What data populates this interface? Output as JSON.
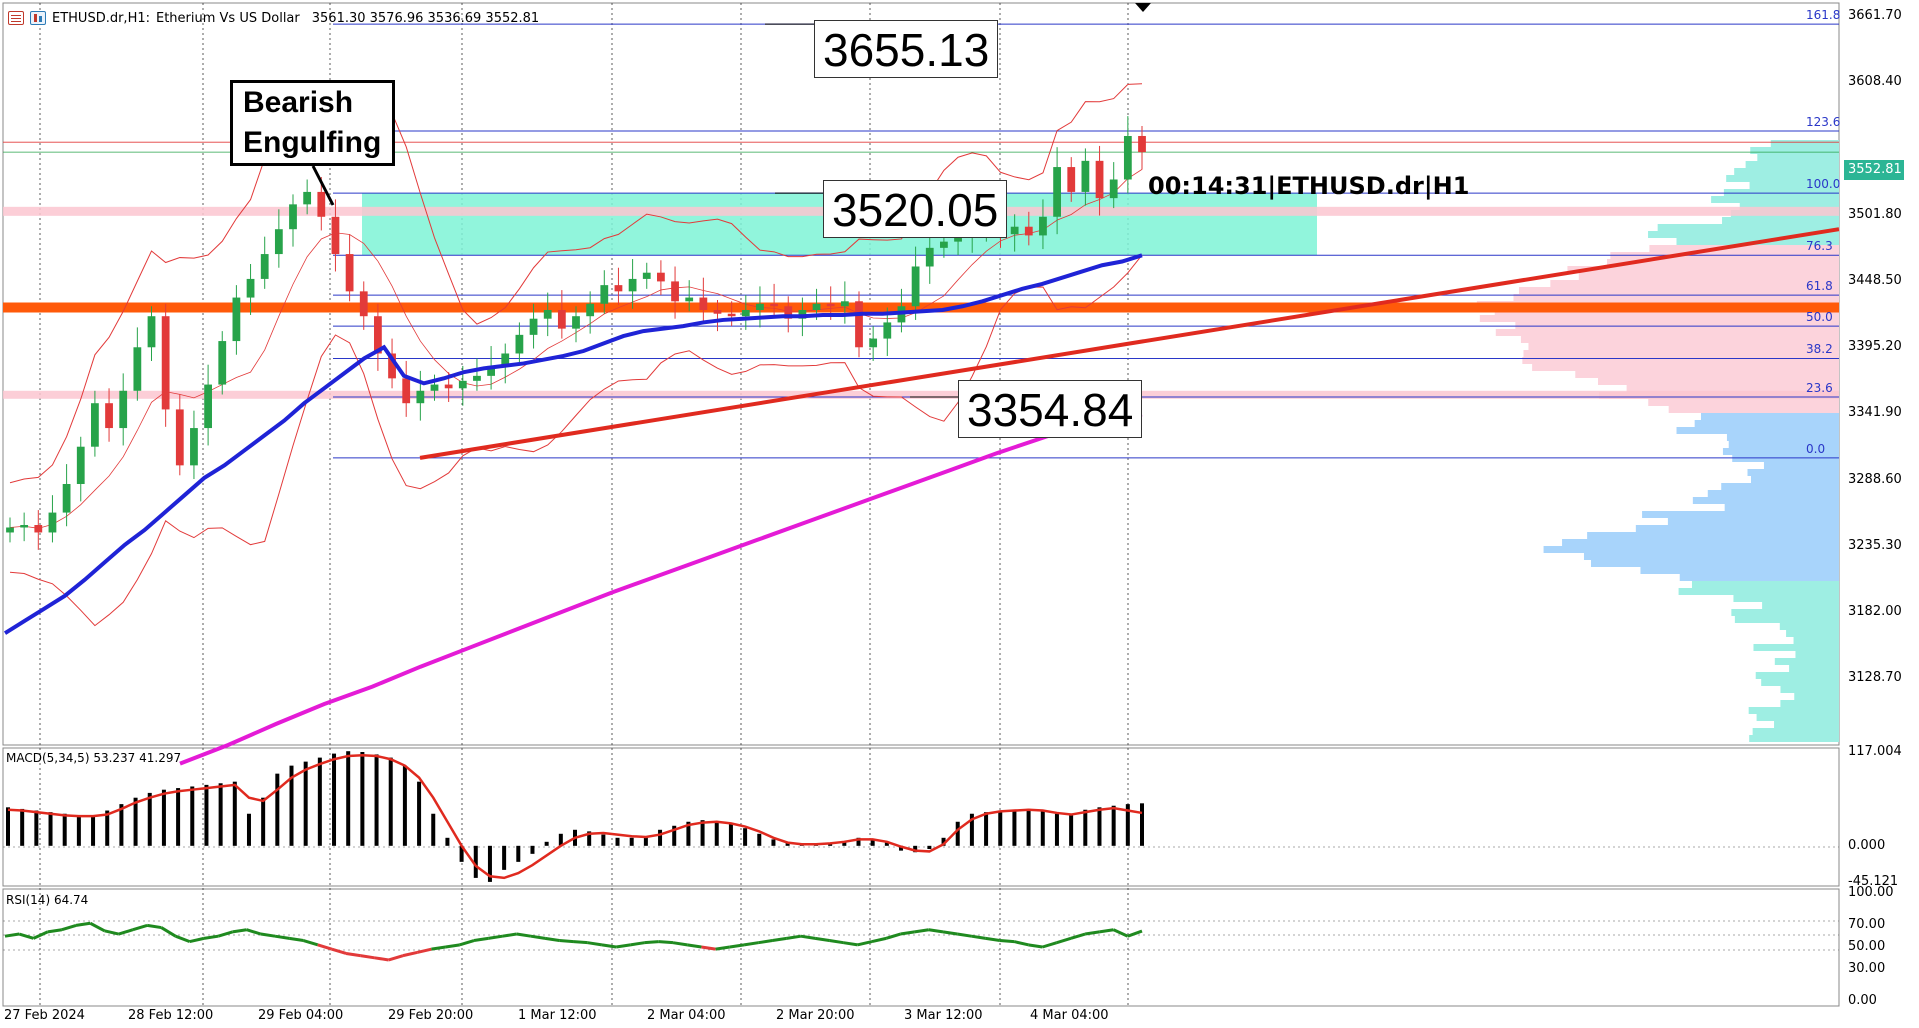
{
  "header": {
    "symbol": "ETHUSD.dr,H1:",
    "description": "Etherium Vs US Dollar",
    "ohlc": "3561.30 3576.96 3536.69 3552.81"
  },
  "annotations": {
    "pattern_line1": "Bearish",
    "pattern_line2": "Engulfing",
    "level_high": "3655.13",
    "level_mid": "3520.05",
    "level_low": "3354.84",
    "timer": "00:14:31|ETHUSD.dr|H1",
    "last_price": "3552.81"
  },
  "colors": {
    "ma_fast": "#1f23d6",
    "ma_slow": "#e41bd6",
    "trendline": "#e02a1f",
    "support_band": "#ff5a0a",
    "zone": "#7ef3d6",
    "bull": "#27a34a",
    "bear": "#e23a3a",
    "fib": "#2a37c8"
  },
  "chart_data": [
    {
      "type": "line",
      "title": "ETHUSD.dr,H1",
      "y_ticks": [
        "3661.70",
        "3608.40",
        "3501.80",
        "3448.50",
        "3395.20",
        "3341.90",
        "3288.60",
        "3235.30",
        "3182.00",
        "3128.70"
      ],
      "x_ticks": [
        "27 Feb 2024",
        "28 Feb 12:00",
        "29 Feb 04:00",
        "29 Feb 20:00",
        "1 Mar 12:00",
        "2 Mar 04:00",
        "2 Mar 20:00",
        "3 Mar 12:00",
        "4 Mar 04:00"
      ],
      "ylim": [
        3075,
        3672
      ],
      "fib_levels": [
        {
          "label": "161.8",
          "value": 3655
        },
        {
          "label": "123.6",
          "value": 3569
        },
        {
          "label": "100.0",
          "value": 3519
        },
        {
          "label": "76.3",
          "value": 3469
        },
        {
          "label": "61.8",
          "value": 3437
        },
        {
          "label": "50.0",
          "value": 3412
        },
        {
          "label": "38.2",
          "value": 3386
        },
        {
          "label": "23.6",
          "value": 3355
        },
        {
          "label": "0.0",
          "value": 3306
        }
      ],
      "series": [
        {
          "name": "close",
          "values": [
            3250,
            3252,
            3246,
            3262,
            3285,
            3315,
            3350,
            3330,
            3360,
            3395,
            3420,
            3345,
            3300,
            3330,
            3365,
            3400,
            3435,
            3450,
            3470,
            3490,
            3510,
            3520,
            3500,
            3470,
            3440,
            3420,
            3390,
            3370,
            3350,
            3360,
            3365,
            3362,
            3368,
            3372,
            3380,
            3390,
            3405,
            3418,
            3425,
            3410,
            3420,
            3430,
            3445,
            3440,
            3450,
            3455,
            3448,
            3432,
            3435,
            3425,
            3422,
            3420,
            3425,
            3430,
            3428,
            3418,
            3425,
            3430,
            3428,
            3432,
            3395,
            3402,
            3415,
            3428,
            3460,
            3475,
            3480,
            3485,
            3488,
            3490,
            3486,
            3492,
            3485,
            3500,
            3540,
            3520,
            3545,
            3515,
            3530,
            3565,
            3552
          ]
        },
        {
          "name": "MA fast",
          "values": [
            3165,
            3175,
            3185,
            3195,
            3208,
            3222,
            3236,
            3248,
            3262,
            3276,
            3290,
            3300,
            3312,
            3324,
            3336,
            3350,
            3362,
            3374,
            3386,
            3395,
            3372,
            3366,
            3370,
            3375,
            3378,
            3380,
            3382,
            3385,
            3388,
            3392,
            3398,
            3404,
            3408,
            3410,
            3412,
            3415,
            3417,
            3418,
            3419,
            3420,
            3420,
            3421,
            3421,
            3422,
            3422,
            3423,
            3424,
            3425,
            3428,
            3432,
            3437,
            3442,
            3446,
            3451,
            3456,
            3461,
            3464,
            3469
          ]
        },
        {
          "name": "MA slow",
          "values": [
            3060,
            3075,
            3092,
            3108,
            3122,
            3138,
            3153,
            3168,
            3183,
            3198,
            3212,
            3226,
            3240,
            3254,
            3268,
            3282,
            3296,
            3310,
            3323,
            3335,
            3341
          ]
        }
      ]
    },
    {
      "type": "bar",
      "title": "MACD(5,34,5) 53.237 41.297",
      "y_ticks": [
        "117.004",
        "0.000",
        "-45.121"
      ],
      "ylim": [
        -45.121,
        117.004
      ],
      "series": [
        {
          "name": "MACD",
          "values": [
            48,
            46,
            44,
            42,
            40,
            38,
            36,
            44,
            52,
            60,
            66,
            70,
            72,
            74,
            76,
            78,
            80,
            40,
            60,
            90,
            100,
            105,
            110,
            115,
            118,
            117,
            114,
            110,
            100,
            80,
            40,
            10,
            -20,
            -40,
            -45,
            -30,
            -20,
            -10,
            5,
            15,
            20,
            18,
            14,
            10,
            10,
            12,
            20,
            25,
            30,
            32,
            30,
            28,
            22,
            15,
            8,
            4,
            2,
            2,
            4,
            6,
            10,
            8,
            4,
            -6,
            -8,
            -4,
            10,
            30,
            40,
            42,
            44,
            45,
            46,
            44,
            40,
            38,
            45,
            48,
            50,
            52,
            53
          ]
        },
        {
          "name": "Signal",
          "values": [
            45,
            44,
            42,
            40,
            38,
            37,
            37,
            39,
            46,
            54,
            60,
            65,
            68,
            70,
            72,
            74,
            76,
            60,
            56,
            70,
            85,
            95,
            102,
            108,
            112,
            113,
            112,
            108,
            100,
            85,
            60,
            30,
            0,
            -25,
            -38,
            -40,
            -34,
            -24,
            -12,
            0,
            10,
            15,
            16,
            14,
            12,
            11,
            14,
            20,
            26,
            29,
            30,
            28,
            24,
            18,
            10,
            4,
            2,
            2,
            3,
            5,
            8,
            8,
            5,
            -1,
            -6,
            -7,
            2,
            20,
            33,
            40,
            43,
            44,
            45,
            44,
            41,
            39,
            42,
            45,
            47,
            44,
            41
          ]
        }
      ]
    },
    {
      "type": "line",
      "title": "RSI(14) 64.74",
      "y_ticks": [
        "100.00",
        "70.00",
        "50.00",
        "30.00",
        "0.00"
      ],
      "ylim": [
        0,
        100
      ],
      "series": [
        {
          "name": "RSI",
          "values": [
            60,
            62,
            58,
            64,
            66,
            70,
            72,
            65,
            62,
            66,
            70,
            68,
            60,
            55,
            58,
            60,
            64,
            66,
            62,
            60,
            58,
            56,
            52,
            48,
            44,
            42,
            40,
            38,
            42,
            45,
            48,
            50,
            52,
            56,
            58,
            60,
            62,
            60,
            58,
            56,
            55,
            54,
            52,
            50,
            52,
            54,
            55,
            54,
            52,
            50,
            48,
            50,
            52,
            54,
            56,
            58,
            60,
            58,
            56,
            54,
            52,
            55,
            58,
            62,
            64,
            66,
            64,
            62,
            60,
            58,
            56,
            55,
            52,
            50,
            54,
            58,
            62,
            64,
            66,
            60,
            64.74
          ]
        }
      ]
    }
  ]
}
